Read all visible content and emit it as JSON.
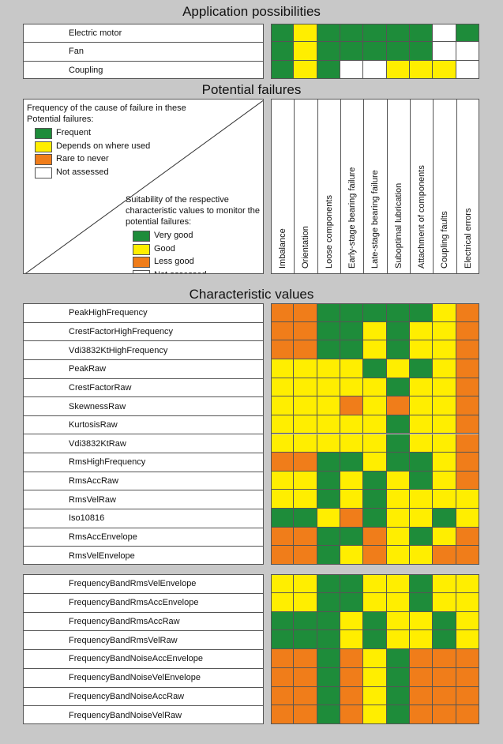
{
  "colors": {
    "G": "#1e8c3a",
    "Y": "#ffee00",
    "O": "#f07d1a",
    "W": "#ffffff"
  },
  "titles": {
    "applications": "Application possibilities",
    "failures": "Potential failures",
    "characteristics": "Characteristic values"
  },
  "applications": [
    {
      "label": "Electric motor",
      "cells": [
        "G",
        "Y",
        "G",
        "G",
        "G",
        "G",
        "G",
        "W",
        "G"
      ]
    },
    {
      "label": "Fan",
      "cells": [
        "G",
        "Y",
        "G",
        "G",
        "G",
        "G",
        "G",
        "W",
        "W"
      ]
    },
    {
      "label": "Coupling",
      "cells": [
        "G",
        "Y",
        "G",
        "W",
        "W",
        "Y",
        "Y",
        "Y",
        "W"
      ]
    }
  ],
  "legend": {
    "frequency_title": "Frequency of the cause of failure in these Potential failures:",
    "frequency_items": [
      {
        "color": "G",
        "label": "Frequent"
      },
      {
        "color": "Y",
        "label": "Depends on where used"
      },
      {
        "color": "O",
        "label": "Rare to never"
      },
      {
        "color": "W",
        "label": "Not assessed"
      }
    ],
    "suitability_title": "Suitability of the respective characteristic values to monitor the potential failures:",
    "suitability_items": [
      {
        "color": "G",
        "label": "Very good"
      },
      {
        "color": "Y",
        "label": "Good"
      },
      {
        "color": "O",
        "label": "Less good"
      },
      {
        "color": "W",
        "label": "Not assessed"
      }
    ]
  },
  "failure_columns": [
    "Imbalance",
    "Orientation",
    "Loose components",
    "Early-stage bearing failure",
    "Late-stage bearing failure",
    "Suboptimal lubrication",
    "Attachment of components",
    "Coupling faults",
    "Electrical errors"
  ],
  "characteristic_group1": [
    {
      "label": "PeakHighFrequency",
      "cells": [
        "O",
        "O",
        "G",
        "G",
        "G",
        "G",
        "G",
        "Y",
        "O"
      ]
    },
    {
      "label": "CrestFactorHighFrequency",
      "cells": [
        "O",
        "O",
        "G",
        "G",
        "Y",
        "G",
        "Y",
        "Y",
        "O"
      ]
    },
    {
      "label": "Vdi3832KtHighFrequency",
      "cells": [
        "O",
        "O",
        "G",
        "G",
        "Y",
        "G",
        "Y",
        "Y",
        "O"
      ]
    },
    {
      "label": "PeakRaw",
      "cells": [
        "Y",
        "Y",
        "Y",
        "Y",
        "G",
        "Y",
        "G",
        "Y",
        "O"
      ]
    },
    {
      "label": "CrestFactorRaw",
      "cells": [
        "Y",
        "Y",
        "Y",
        "Y",
        "Y",
        "G",
        "Y",
        "Y",
        "O"
      ]
    },
    {
      "label": "SkewnessRaw",
      "cells": [
        "Y",
        "Y",
        "Y",
        "O",
        "Y",
        "O",
        "Y",
        "Y",
        "O"
      ]
    },
    {
      "label": "KurtosisRaw",
      "cells": [
        "Y",
        "Y",
        "Y",
        "Y",
        "Y",
        "G",
        "Y",
        "Y",
        "O"
      ]
    },
    {
      "label": "Vdi3832KtRaw",
      "cells": [
        "Y",
        "Y",
        "Y",
        "Y",
        "Y",
        "G",
        "Y",
        "Y",
        "O"
      ]
    },
    {
      "label": "RmsHighFrequency",
      "cells": [
        "O",
        "O",
        "G",
        "G",
        "Y",
        "G",
        "G",
        "Y",
        "O"
      ]
    },
    {
      "label": "RmsAccRaw",
      "cells": [
        "Y",
        "Y",
        "G",
        "Y",
        "G",
        "Y",
        "G",
        "Y",
        "O"
      ]
    },
    {
      "label": "RmsVelRaw",
      "cells": [
        "Y",
        "Y",
        "G",
        "Y",
        "G",
        "Y",
        "Y",
        "Y",
        "Y"
      ]
    },
    {
      "label": "Iso10816",
      "cells": [
        "G",
        "G",
        "Y",
        "O",
        "G",
        "Y",
        "Y",
        "G",
        "Y"
      ]
    },
    {
      "label": "RmsAccEnvelope",
      "cells": [
        "O",
        "O",
        "G",
        "G",
        "O",
        "Y",
        "G",
        "Y",
        "O"
      ]
    },
    {
      "label": "RmsVelEnvelope",
      "cells": [
        "O",
        "O",
        "G",
        "Y",
        "O",
        "Y",
        "Y",
        "O",
        "O"
      ]
    }
  ],
  "characteristic_group2": [
    {
      "label": "FrequencyBandRmsVelEnvelope",
      "cells": [
        "Y",
        "Y",
        "G",
        "G",
        "Y",
        "Y",
        "G",
        "Y",
        "Y"
      ]
    },
    {
      "label": "FrequencyBandRmsAccEnvelope",
      "cells": [
        "Y",
        "Y",
        "G",
        "G",
        "Y",
        "Y",
        "G",
        "Y",
        "Y"
      ]
    },
    {
      "label": "FrequencyBandRmsAccRaw",
      "cells": [
        "G",
        "G",
        "G",
        "Y",
        "G",
        "Y",
        "Y",
        "G",
        "Y"
      ]
    },
    {
      "label": "FrequencyBandRmsVelRaw",
      "cells": [
        "G",
        "G",
        "G",
        "Y",
        "G",
        "Y",
        "Y",
        "G",
        "Y"
      ]
    },
    {
      "label": "FrequencyBandNoiseAccEnvelope",
      "cells": [
        "O",
        "O",
        "G",
        "O",
        "Y",
        "G",
        "O",
        "O",
        "O"
      ]
    },
    {
      "label": "FrequencyBandNoiseVelEnvelope",
      "cells": [
        "O",
        "O",
        "G",
        "O",
        "Y",
        "G",
        "O",
        "O",
        "O"
      ]
    },
    {
      "label": "FrequencyBandNoiseAccRaw",
      "cells": [
        "O",
        "O",
        "G",
        "O",
        "Y",
        "G",
        "O",
        "O",
        "O"
      ]
    },
    {
      "label": "FrequencyBandNoiseVelRaw",
      "cells": [
        "O",
        "O",
        "G",
        "O",
        "Y",
        "G",
        "O",
        "O",
        "O"
      ]
    }
  ]
}
